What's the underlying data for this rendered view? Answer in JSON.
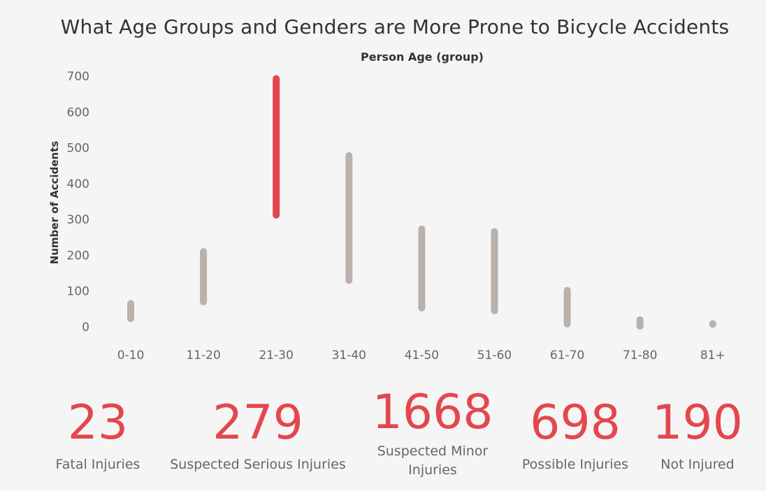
{
  "chart_data": {
    "type": "range-bar",
    "title": "What Age Groups and Genders are More Prone to Bicycle Accidents",
    "xlabel": "Person Age (group)",
    "ylabel": "Number of Accidents",
    "categories": [
      "0-10",
      "11-20",
      "21-30",
      "31-40",
      "41-50",
      "51-60",
      "61-70",
      "71-80",
      "81+"
    ],
    "low": [
      23,
      70,
      312,
      130,
      53,
      45,
      8,
      2,
      7
    ],
    "high": [
      65,
      210,
      693,
      478,
      273,
      266,
      102,
      20,
      9
    ],
    "highlight_index": 2,
    "ylim": [
      0,
      700
    ],
    "yticks": [
      0,
      100,
      200,
      300,
      400,
      500,
      600,
      700
    ],
    "grid": false,
    "colors": {
      "highlight": "#e3474d",
      "default": "#bab1ac"
    }
  },
  "kpis": [
    {
      "value": "23",
      "label": "Fatal Injuries"
    },
    {
      "value": "279",
      "label": "Suspected Serious Injuries"
    },
    {
      "value": "1668",
      "label": "Suspected Minor Injuries"
    },
    {
      "value": "698",
      "label": "Possible Injuries"
    },
    {
      "value": "190",
      "label": "Not Injured"
    }
  ]
}
